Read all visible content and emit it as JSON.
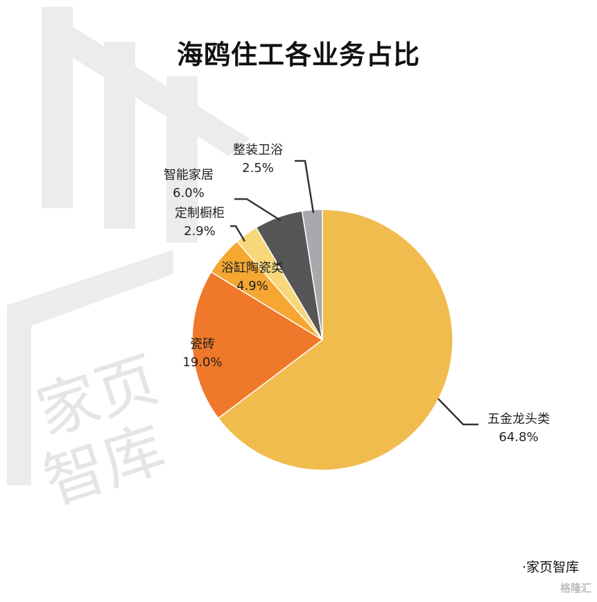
{
  "title": "海鸥住工各业务占比",
  "chart_data": {
    "type": "pie",
    "title": "海鸥住工各业务占比",
    "unit": "%",
    "slices": [
      {
        "name": "五金龙头类",
        "value": 64.8,
        "label": "64.8%",
        "color": "#F0BC4E"
      },
      {
        "name": "瓷砖",
        "value": 19.0,
        "label": "19.0%",
        "color": "#EF782A"
      },
      {
        "name": "浴缸陶瓷类",
        "value": 4.9,
        "label": "4.9%",
        "color": "#F5A732"
      },
      {
        "name": "定制橱柜",
        "value": 2.9,
        "label": "2.9%",
        "color": "#F7D77A"
      },
      {
        "name": "智能家居",
        "value": 6.0,
        "label": "6.0%",
        "color": "#565656"
      },
      {
        "name": "整装卫浴",
        "value": 2.5,
        "label": "2.5%",
        "color": "#A8A9AD"
      }
    ],
    "start": "12 o'clock",
    "direction": "clockwise",
    "legend": "none",
    "labels": "outside-with-leader-lines"
  },
  "watermark": {
    "text_line1": "家页",
    "text_line2": "智库"
  },
  "footer": {
    "source": "·家页智库"
  },
  "corner_mark": "格隆汇"
}
